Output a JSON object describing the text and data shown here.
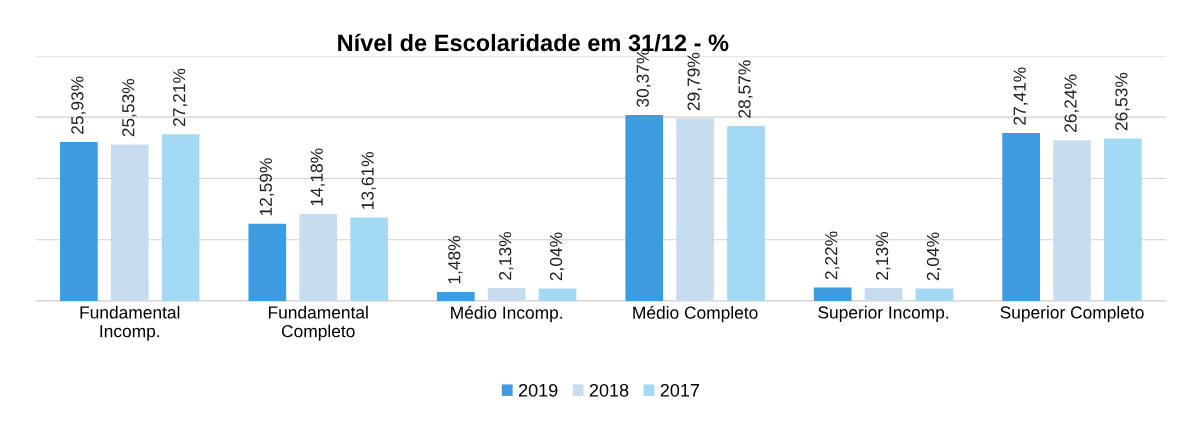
{
  "chart_data": {
    "type": "bar",
    "title": "Nível de Escolaridade em 31/12 - %",
    "categories": [
      "Fundamental\nIncomp.",
      "Fundamental\nCompleto",
      "Médio Incomp.",
      "Médio Completo",
      "Superior Incomp.",
      "Superior Completo"
    ],
    "series": [
      {
        "name": "2019",
        "color": "#3d9be0",
        "values": [
          25.93,
          12.59,
          1.48,
          30.37,
          2.22,
          27.41
        ],
        "value_labels": [
          "25,93%",
          "12,59%",
          "1,48%",
          "30,37%",
          "2,22%",
          "27,41%"
        ]
      },
      {
        "name": "2018",
        "color": "#c8dcf0",
        "values": [
          25.53,
          14.18,
          2.13,
          29.79,
          2.13,
          26.24
        ],
        "value_labels": [
          "25,53%",
          "14,18%",
          "2,13%",
          "29,79%",
          "2,13%",
          "26,24%"
        ]
      },
      {
        "name": "2017",
        "color": "#a3d9f2",
        "values": [
          27.21,
          13.61,
          2.04,
          28.57,
          2.04,
          26.53
        ],
        "value_labels": [
          "27,21%",
          "13,61%",
          "2,04%",
          "28,57%",
          "2,04%",
          "26,53%"
        ]
      }
    ],
    "ylim": [
      0,
      40
    ],
    "yticks": [
      {
        "value": 0,
        "label": null
      },
      {
        "value": 10,
        "label": null
      },
      {
        "value": 20,
        "label": null
      },
      {
        "value": 30,
        "label": null
      },
      {
        "value": 40,
        "label": null
      }
    ],
    "tick_labels": "x",
    "grid": "y",
    "legend": "bottom"
  }
}
